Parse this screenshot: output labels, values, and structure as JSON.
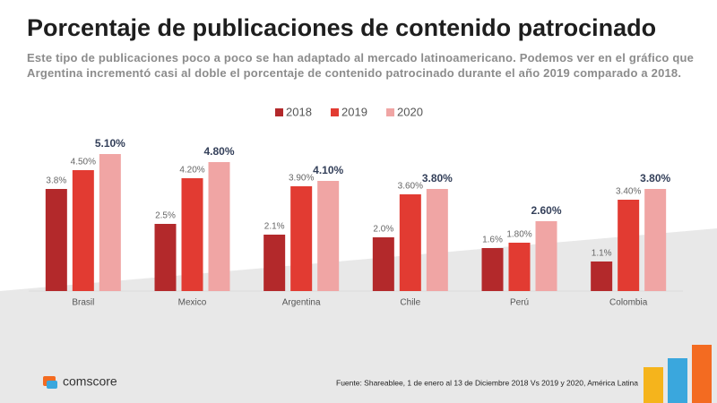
{
  "chart_data": {
    "type": "bar",
    "title": "Porcentaje de publicaciones de contenido patrocinado",
    "subtitle": "Este tipo de publicaciones poco a poco se han adaptado al mercado latinoamericano. Podemos ver en el gráfico que Argentina incrementó casi al doble el porcentaje de contenido patrocinado durante el año 2019 comparado a 2018.",
    "source": "Fuente: Shareablee, 1 de enero al 13 de Diciembre 2018 Vs 2019 y 2020, América Latina",
    "logo": "comscore",
    "categories": [
      "Brasil",
      "Mexico",
      "Argentina",
      "Chile",
      "Perú",
      "Colombia"
    ],
    "series": [
      {
        "name": "2018",
        "color": "#b3292b",
        "values": [
          3.8,
          2.5,
          2.1,
          2.0,
          1.6,
          1.1
        ],
        "value_labels": [
          "3.8%",
          "2.5%",
          "2.1%",
          "2.0%",
          "1.6%",
          "1.1%"
        ]
      },
      {
        "name": "2019",
        "color": "#e23b32",
        "values": [
          4.5,
          4.2,
          3.9,
          3.6,
          1.8,
          3.4
        ],
        "value_labels": [
          "4.50%",
          "4.20%",
          "3.90%",
          "3.60%",
          "1.80%",
          "3.40%"
        ]
      },
      {
        "name": "2020",
        "color": "#f0a5a4",
        "values": [
          5.1,
          4.8,
          4.1,
          3.8,
          2.6,
          3.8
        ],
        "value_labels": [
          "5.10%",
          "4.80%",
          "4.10%",
          "3.80%",
          "2.60%",
          "3.80%"
        ]
      }
    ],
    "legend": "top"
  }
}
